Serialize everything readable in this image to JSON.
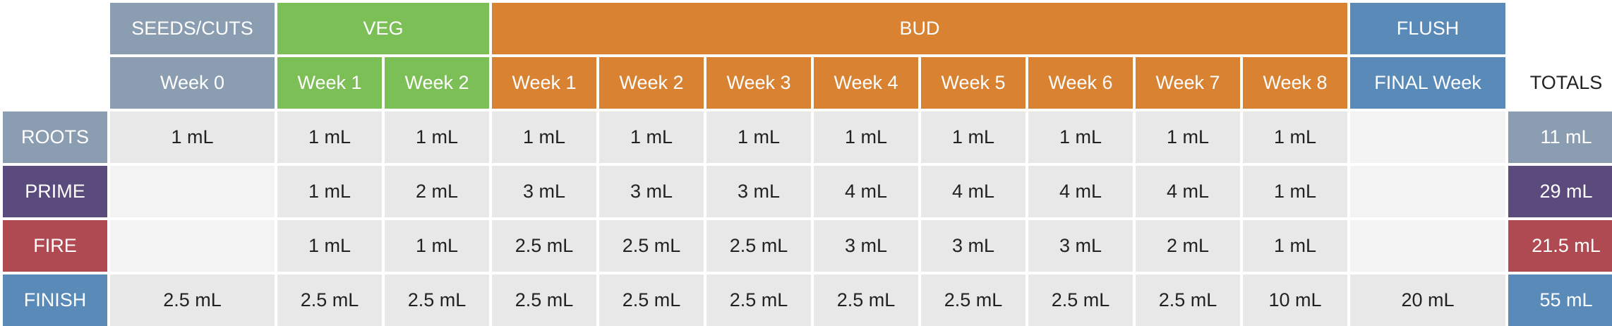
{
  "phases": {
    "seeds": "SEEDS/CUTS",
    "veg": "VEG",
    "bud": "BUD",
    "flush": "FLUSH"
  },
  "weeks": {
    "seeds": [
      "Week 0"
    ],
    "veg": [
      "Week 1",
      "Week 2"
    ],
    "bud": [
      "Week 1",
      "Week 2",
      "Week 3",
      "Week 4",
      "Week 5",
      "Week 6",
      "Week 7",
      "Week 8"
    ],
    "flush": [
      "FINAL Week"
    ],
    "totals": "TOTALS"
  },
  "rows": [
    {
      "label": "ROOTS",
      "values": [
        "1 mL",
        "1 mL",
        "1 mL",
        "1 mL",
        "1 mL",
        "1 mL",
        "1 mL",
        "1 mL",
        "1 mL",
        "1 mL",
        "1 mL",
        ""
      ],
      "total": "11 mL"
    },
    {
      "label": "PRIME",
      "values": [
        "",
        "1 mL",
        "2 mL",
        "3 mL",
        "3 mL",
        "3 mL",
        "4 mL",
        "4 mL",
        "4 mL",
        "4 mL",
        "1 mL",
        ""
      ],
      "total": "29 mL"
    },
    {
      "label": "FIRE",
      "values": [
        "",
        "1 mL",
        "1 mL",
        "2.5 mL",
        "2.5 mL",
        "2.5 mL",
        "3 mL",
        "3 mL",
        "3 mL",
        "2 mL",
        "1 mL",
        ""
      ],
      "total": "21.5 mL"
    },
    {
      "label": "FINISH",
      "values": [
        "2.5 mL",
        "2.5 mL",
        "2.5 mL",
        "2.5 mL",
        "2.5 mL",
        "2.5 mL",
        "2.5 mL",
        "2.5 mL",
        "2.5 mL",
        "2.5 mL",
        "10 mL",
        "20 mL"
      ],
      "total": "55 mL"
    }
  ],
  "colors": {
    "seeds": "#8a9db1",
    "veg": "#7cbf56",
    "bud": "#d98232",
    "flush": "#5a8ab8",
    "roots": "#8a9db1",
    "prime": "#5b4a7c",
    "fire": "#b04a52",
    "finish": "#5a8ab8"
  }
}
